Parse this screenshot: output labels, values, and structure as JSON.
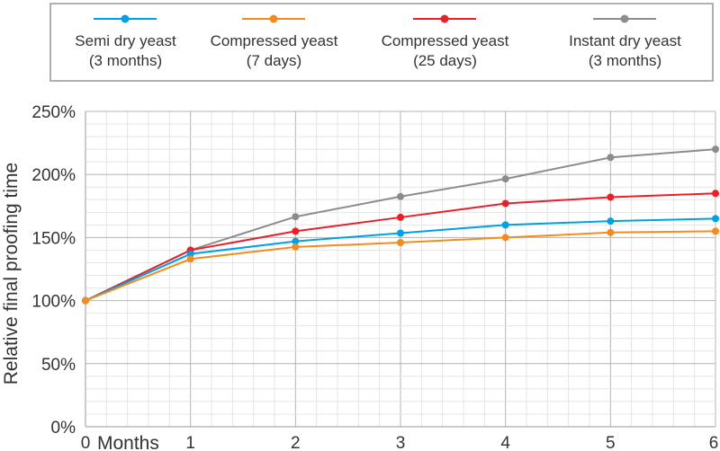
{
  "chart_data": {
    "type": "line",
    "title": "",
    "xlabel": "Months",
    "ylabel": "Relative final proofing time",
    "x": [
      0,
      1,
      2,
      3,
      4,
      5,
      6
    ],
    "x_tick_labels": [
      "0",
      "1",
      "2",
      "3",
      "4",
      "5",
      "6"
    ],
    "y_tick_labels": [
      "0%",
      "50%",
      "100%",
      "150%",
      "200%",
      "250%"
    ],
    "ylim": [
      0,
      250
    ],
    "xlim": [
      0,
      6
    ],
    "grid": true,
    "legend_position": "top",
    "series": [
      {
        "name": "Semi dry yeast\n(3 months)",
        "color": "#00a0e4",
        "values": [
          100,
          137,
          147,
          153.5,
          160,
          163,
          165
        ]
      },
      {
        "name": "Compressed yeast\n(7 days)",
        "color": "#f28c1e",
        "values": [
          100,
          133,
          142.5,
          146,
          150,
          154,
          155
        ]
      },
      {
        "name": "Compressed yeast\n(25 days)",
        "color": "#e8202a",
        "values": [
          100,
          140,
          155,
          166,
          177,
          182,
          185
        ]
      },
      {
        "name": "Instant dry yeast\n(3 months)",
        "color": "#8c8c8c",
        "values": [
          100,
          140,
          166.5,
          182.5,
          196.5,
          213.5,
          220
        ]
      }
    ]
  }
}
